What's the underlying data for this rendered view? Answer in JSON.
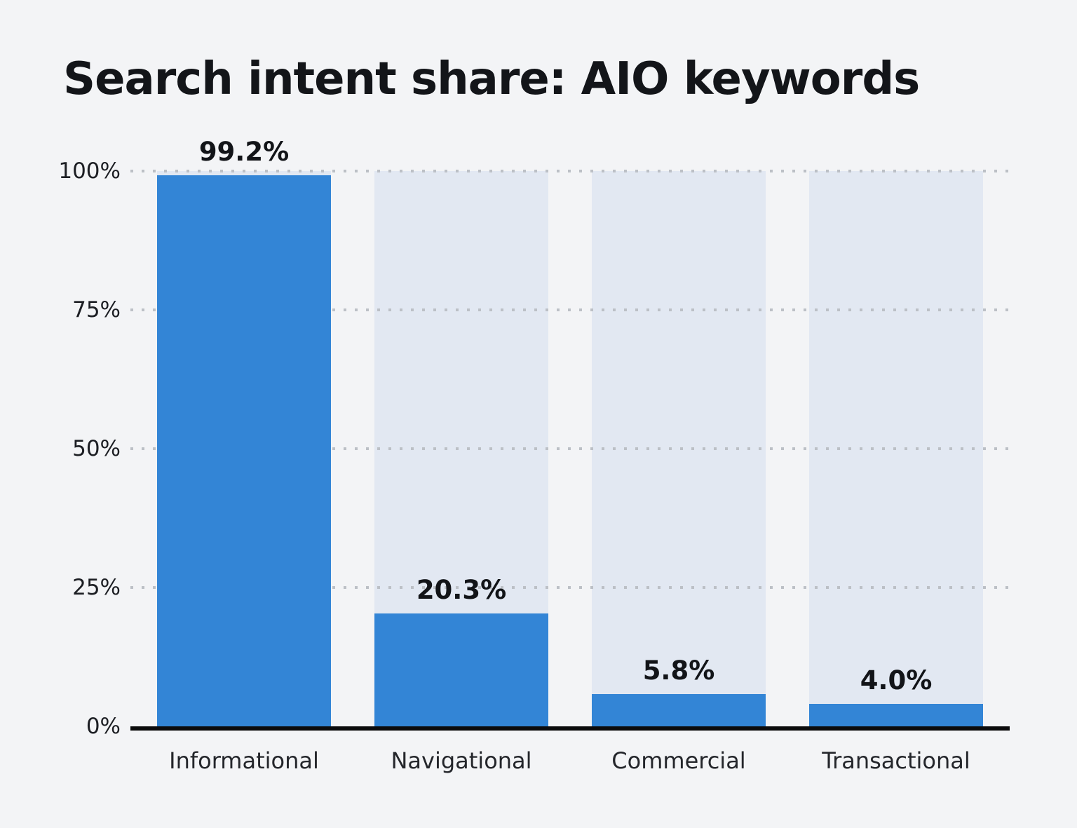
{
  "chart_data": {
    "type": "bar",
    "title": "Search intent share: AIO keywords",
    "categories": [
      "Informational",
      "Navigational",
      "Commercial",
      "Transactional"
    ],
    "values": [
      99.2,
      20.3,
      5.8,
      4.0
    ],
    "value_labels": [
      "99.2%",
      "20.3%",
      "5.8%",
      "4.0%"
    ],
    "yticks": [
      {
        "value": 0,
        "label": "0%"
      },
      {
        "value": 25,
        "label": "25%"
      },
      {
        "value": 50,
        "label": "50%"
      },
      {
        "value": 75,
        "label": "75%"
      },
      {
        "value": 100,
        "label": "100%"
      }
    ],
    "ylim": [
      0,
      100
    ],
    "xlabel": "",
    "ylabel": "",
    "grid": "horizontal dotted lines at 25, 50, 75, 100",
    "legend": "none",
    "bar_style": "solid fill over full-height 100% background track",
    "colors": {
      "bar": "#3385d6",
      "track": "#e2e8f2",
      "background": "#f3f4f6",
      "grid_dot": "#bcc0c6",
      "axis": "#0b0b0c",
      "text": "#131519"
    }
  }
}
